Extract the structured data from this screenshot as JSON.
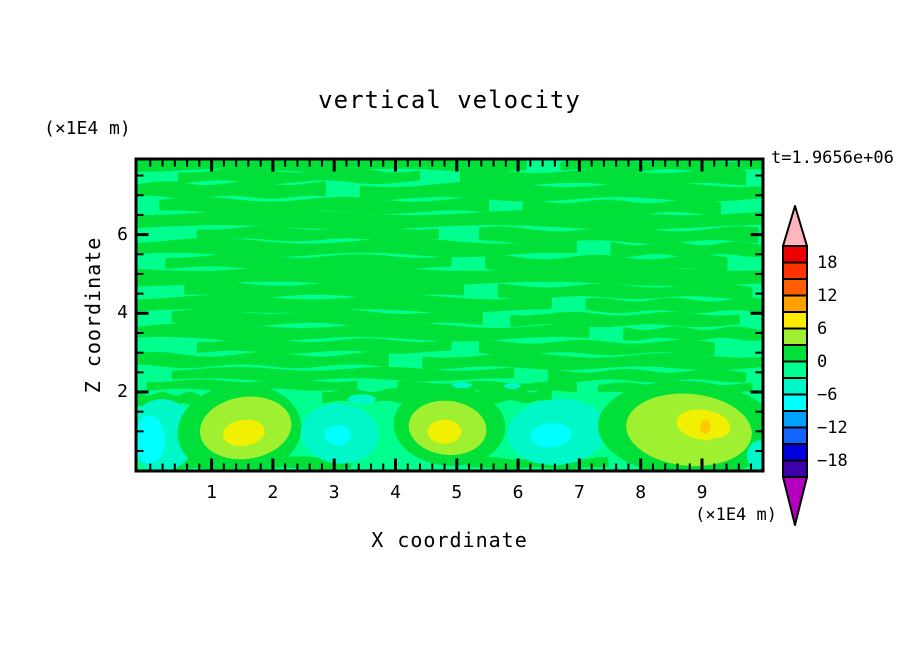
{
  "title": "vertical velocity",
  "time_annotation": "t=1.9656e+06",
  "x_axis": {
    "title": "X coordinate",
    "unit_label": "(×1E4 m)",
    "tick_labels": [
      "1",
      "2",
      "3",
      "4",
      "5",
      "6",
      "7",
      "8",
      "9"
    ]
  },
  "y_axis": {
    "title": "Z coordinate",
    "unit_label": "(×1E4 m)",
    "tick_labels": [
      "2",
      "4",
      "6"
    ]
  },
  "colorbar": {
    "labels": [
      "18",
      "12",
      "6",
      "0",
      "−6",
      "−12",
      "−18"
    ],
    "over_color": "#FFB4BE",
    "under_color": "#B400BE",
    "box_colors": [
      "#EE0000",
      "#FF3200",
      "#FF5F00",
      "#FFA000",
      "#FFEB00",
      "#A0F032",
      "#00E038",
      "#00FF8E",
      "#00F7C8",
      "#00FFFF",
      "#00A0FF",
      "#1464FF",
      "#0000E0",
      "#3C00AA"
    ]
  },
  "chart_data": {
    "type": "filled_contour",
    "field_name": "vertical velocity",
    "time": "t=1.9656e+06",
    "x_label": "X coordinate",
    "x_units": "x1E4 m",
    "z_label": "Z coordinate",
    "z_units": "x1E4 m",
    "x_range": [
      -0.2,
      10.0
    ],
    "z_range": [
      0,
      7.9
    ],
    "x_major_ticks": [
      1,
      2,
      3,
      4,
      5,
      6,
      7,
      8,
      9
    ],
    "x_minor_step": 0.2,
    "z_major_ticks": [
      2,
      4,
      6
    ],
    "z_minor_step": 0.5,
    "contour_interval": 3,
    "level_boundaries": [
      21,
      18,
      15,
      12,
      9,
      6,
      3,
      0,
      -3,
      -6,
      -9,
      -12,
      -15,
      -18,
      -21
    ],
    "level_colors_top_to_bottom": [
      "#EE0000",
      "#FF3200",
      "#FF5F00",
      "#FFA000",
      "#FFEB00",
      "#A0F032",
      "#00E038",
      "#00FF8E",
      "#00F7C8",
      "#00FFFF",
      "#00A0FF",
      "#1464FF",
      "#0000E0",
      "#3C00AA"
    ],
    "colorbar_label_values": [
      18,
      12,
      6,
      0,
      -6,
      -12,
      -18
    ],
    "background_band": "spring-green, values -3..0",
    "description": "Stratified region z>2 shows thin alternating green (0..3) and spring-green (-3..0) horizontal streaks; convective layer z<2 shows updraft blobs (chartreuse 3..6 with yellow 6..9 cores, one gold 9..12 speck) and downdraft patches (aquamarine -6..-3 with cyan -9..-6 cores).",
    "palette": {
      "g": "#00E038",
      "ch": "#A0F032",
      "ye": "#F0F000",
      "go": "#FFC800",
      "aq": "#00F7C8",
      "cy": "#00FFFF",
      "bg": "#00FF8E"
    },
    "bands": [
      [
        0.015,
        0.0,
        0.62,
        9,
        2,
        0
      ],
      [
        0.02,
        0.68,
        1.0,
        7,
        2,
        2
      ],
      [
        0.055,
        0.07,
        0.45,
        8,
        2.5,
        1
      ],
      [
        0.06,
        0.52,
        0.97,
        9,
        2,
        4
      ],
      [
        0.1,
        0.0,
        0.3,
        10,
        2,
        2.5
      ],
      [
        0.105,
        0.36,
        1.0,
        11,
        3,
        0.5
      ],
      [
        0.15,
        0.04,
        0.56,
        9,
        2.5,
        3
      ],
      [
        0.155,
        0.62,
        0.93,
        8,
        2,
        5
      ],
      [
        0.195,
        0.0,
        1.0,
        11,
        3,
        1.5
      ],
      [
        0.24,
        0.1,
        0.48,
        8,
        2,
        0.8
      ],
      [
        0.245,
        0.55,
        0.99,
        9,
        2.5,
        3.8
      ],
      [
        0.285,
        0.0,
        0.7,
        10,
        3,
        2.2
      ],
      [
        0.29,
        0.76,
        1.0,
        8,
        2,
        5.5
      ],
      [
        0.33,
        0.05,
        0.5,
        8,
        2,
        1.2
      ],
      [
        0.335,
        0.56,
        0.94,
        9,
        2.5,
        4.4
      ],
      [
        0.375,
        0.0,
        1.0,
        12,
        3,
        0.3
      ],
      [
        0.42,
        0.08,
        0.52,
        8,
        2,
        2.9
      ],
      [
        0.425,
        0.58,
        0.98,
        8,
        2,
        5.1
      ],
      [
        0.465,
        0.0,
        0.66,
        10,
        2.5,
        1.7
      ],
      [
        0.47,
        0.72,
        1.0,
        8,
        2,
        4.0
      ],
      [
        0.51,
        0.06,
        0.55,
        9,
        2.5,
        3.3
      ],
      [
        0.515,
        0.6,
        0.96,
        8,
        2,
        0.9
      ],
      [
        0.555,
        0.0,
        0.72,
        10,
        3,
        2.6
      ],
      [
        0.56,
        0.78,
        1.0,
        7,
        2,
        5.8
      ],
      [
        0.6,
        0.1,
        0.5,
        8,
        2,
        1.4
      ],
      [
        0.605,
        0.55,
        0.92,
        8,
        2,
        4.7
      ],
      [
        0.645,
        0.0,
        0.4,
        8,
        2.5,
        3.6
      ],
      [
        0.65,
        0.46,
        1.0,
        9,
        2.5,
        0.6
      ],
      [
        0.69,
        0.06,
        0.6,
        7,
        2,
        2.0
      ],
      [
        0.695,
        0.66,
        0.97,
        6,
        2,
        5.3
      ],
      [
        0.725,
        0.02,
        0.35,
        5,
        1.5,
        1.1
      ],
      [
        0.73,
        0.42,
        0.7,
        5,
        1.5,
        4.2
      ],
      [
        0.735,
        0.74,
        0.98,
        5,
        1.5,
        2.4
      ],
      [
        0.76,
        0.3,
        0.46,
        8,
        2,
        1.0
      ],
      [
        0.76,
        0.55,
        0.66,
        7,
        2,
        3.5
      ],
      [
        0.77,
        0.0,
        0.1,
        7,
        2,
        5.0
      ],
      [
        0.975,
        0.05,
        0.34,
        7,
        1.5,
        0.5
      ],
      [
        0.975,
        0.53,
        0.75,
        6,
        1.5,
        2.8
      ]
    ],
    "blobs": [
      [
        0.042,
        0.885,
        34,
        36,
        "aq",
        0
      ],
      [
        0.022,
        0.9,
        15,
        24,
        "cy",
        0
      ],
      [
        0.165,
        0.87,
        62,
        46,
        "g",
        -6
      ],
      [
        0.175,
        0.862,
        46,
        31,
        "ch",
        -8
      ],
      [
        0.172,
        0.878,
        21,
        13,
        "ye",
        -8
      ],
      [
        0.325,
        0.88,
        39,
        30,
        "aq",
        5
      ],
      [
        0.322,
        0.885,
        13,
        10,
        "cy",
        0
      ],
      [
        0.5,
        0.855,
        56,
        40,
        "g",
        4
      ],
      [
        0.497,
        0.862,
        39,
        27,
        "ch",
        6
      ],
      [
        0.492,
        0.874,
        17,
        12,
        "ye",
        0
      ],
      [
        0.672,
        0.875,
        50,
        33,
        "aq",
        -5
      ],
      [
        0.662,
        0.886,
        21,
        12,
        "cy",
        -5
      ],
      [
        0.88,
        0.865,
        90,
        48,
        "g",
        3
      ],
      [
        0.882,
        0.868,
        63,
        36,
        "ch",
        5
      ],
      [
        0.905,
        0.852,
        27,
        15,
        "ye",
        8
      ],
      [
        0.908,
        0.858,
        5,
        7,
        "go",
        0
      ],
      [
        0.932,
        0.925,
        17,
        10,
        "ch",
        0
      ],
      [
        0.995,
        0.95,
        13,
        15,
        "aq",
        0
      ],
      [
        0.52,
        0.725,
        10,
        3,
        "aq",
        0
      ],
      [
        0.6,
        0.728,
        8,
        3,
        "aq",
        0
      ],
      [
        0.36,
        0.77,
        14,
        5,
        "aq",
        0
      ]
    ]
  }
}
